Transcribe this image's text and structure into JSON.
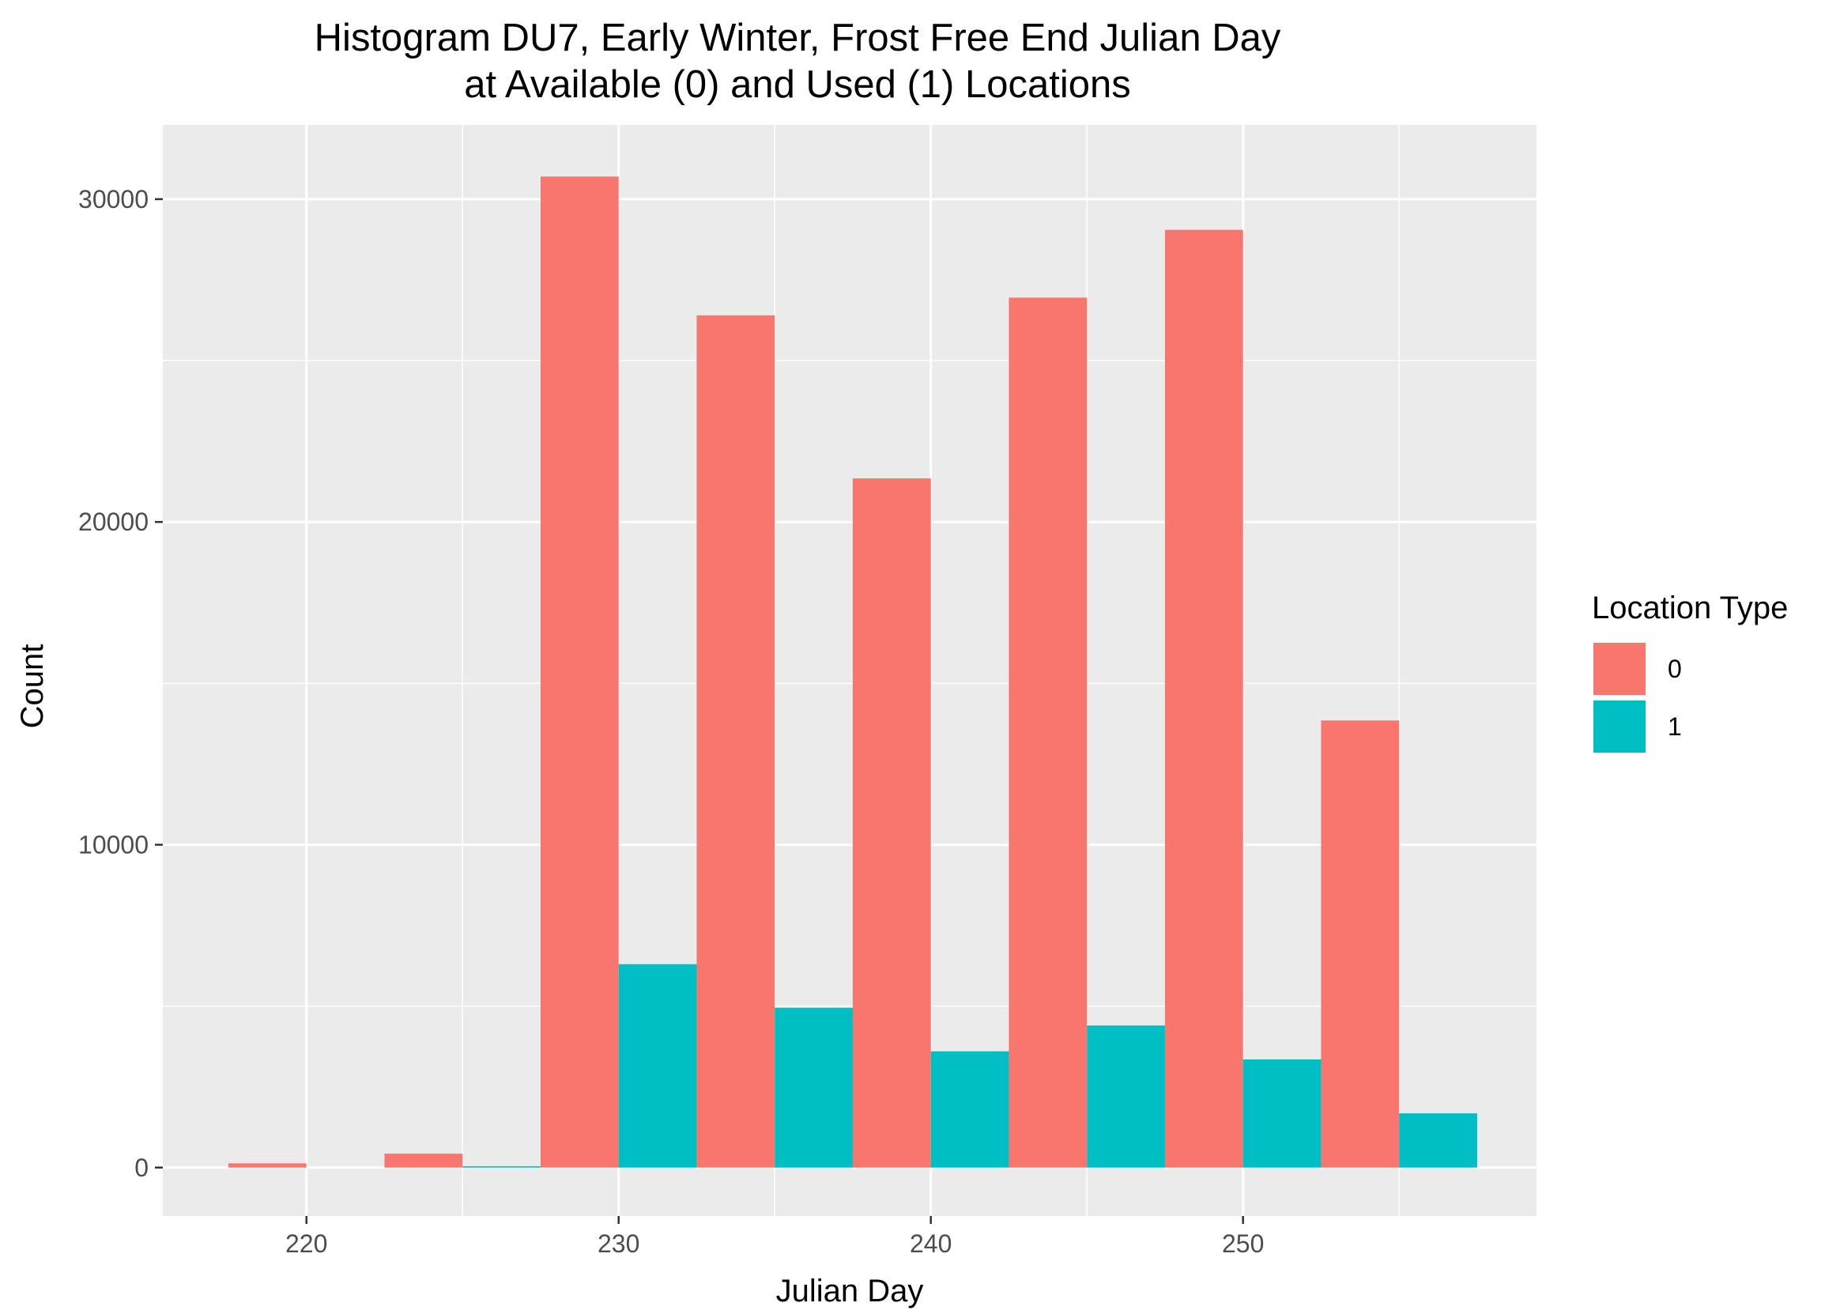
{
  "chart_data": {
    "type": "bar",
    "title": "Histogram DU7, Early Winter, Frost Free End Julian Day",
    "subtitle": "at Available (0) and Used (1) Locations",
    "xlabel": "Julian Day",
    "ylabel": "Count",
    "xlim": [
      215.4,
      259.4
    ],
    "ylim": [
      -1500,
      32300
    ],
    "x_ticks": [
      220,
      230,
      240,
      250
    ],
    "x_tick_labels": [
      "220",
      "230",
      "240",
      "250"
    ],
    "y_ticks": [
      0,
      10000,
      20000,
      30000
    ],
    "y_tick_labels": [
      "0",
      "10000",
      "20000",
      "30000"
    ],
    "bin_width": 5,
    "bin_centers": [
      220,
      225,
      230,
      235,
      240,
      245,
      250,
      255
    ],
    "grid": true,
    "legend_position": "right",
    "legend_title": "Location Type",
    "series": [
      {
        "name": "0",
        "color": "#F8766D",
        "values": [
          130,
          430,
          30700,
          26400,
          21350,
          26950,
          29050,
          13850
        ]
      },
      {
        "name": "1",
        "color": "#00BFC4",
        "values": [
          0,
          40,
          6300,
          4950,
          3600,
          4400,
          3350,
          1680
        ]
      }
    ]
  }
}
